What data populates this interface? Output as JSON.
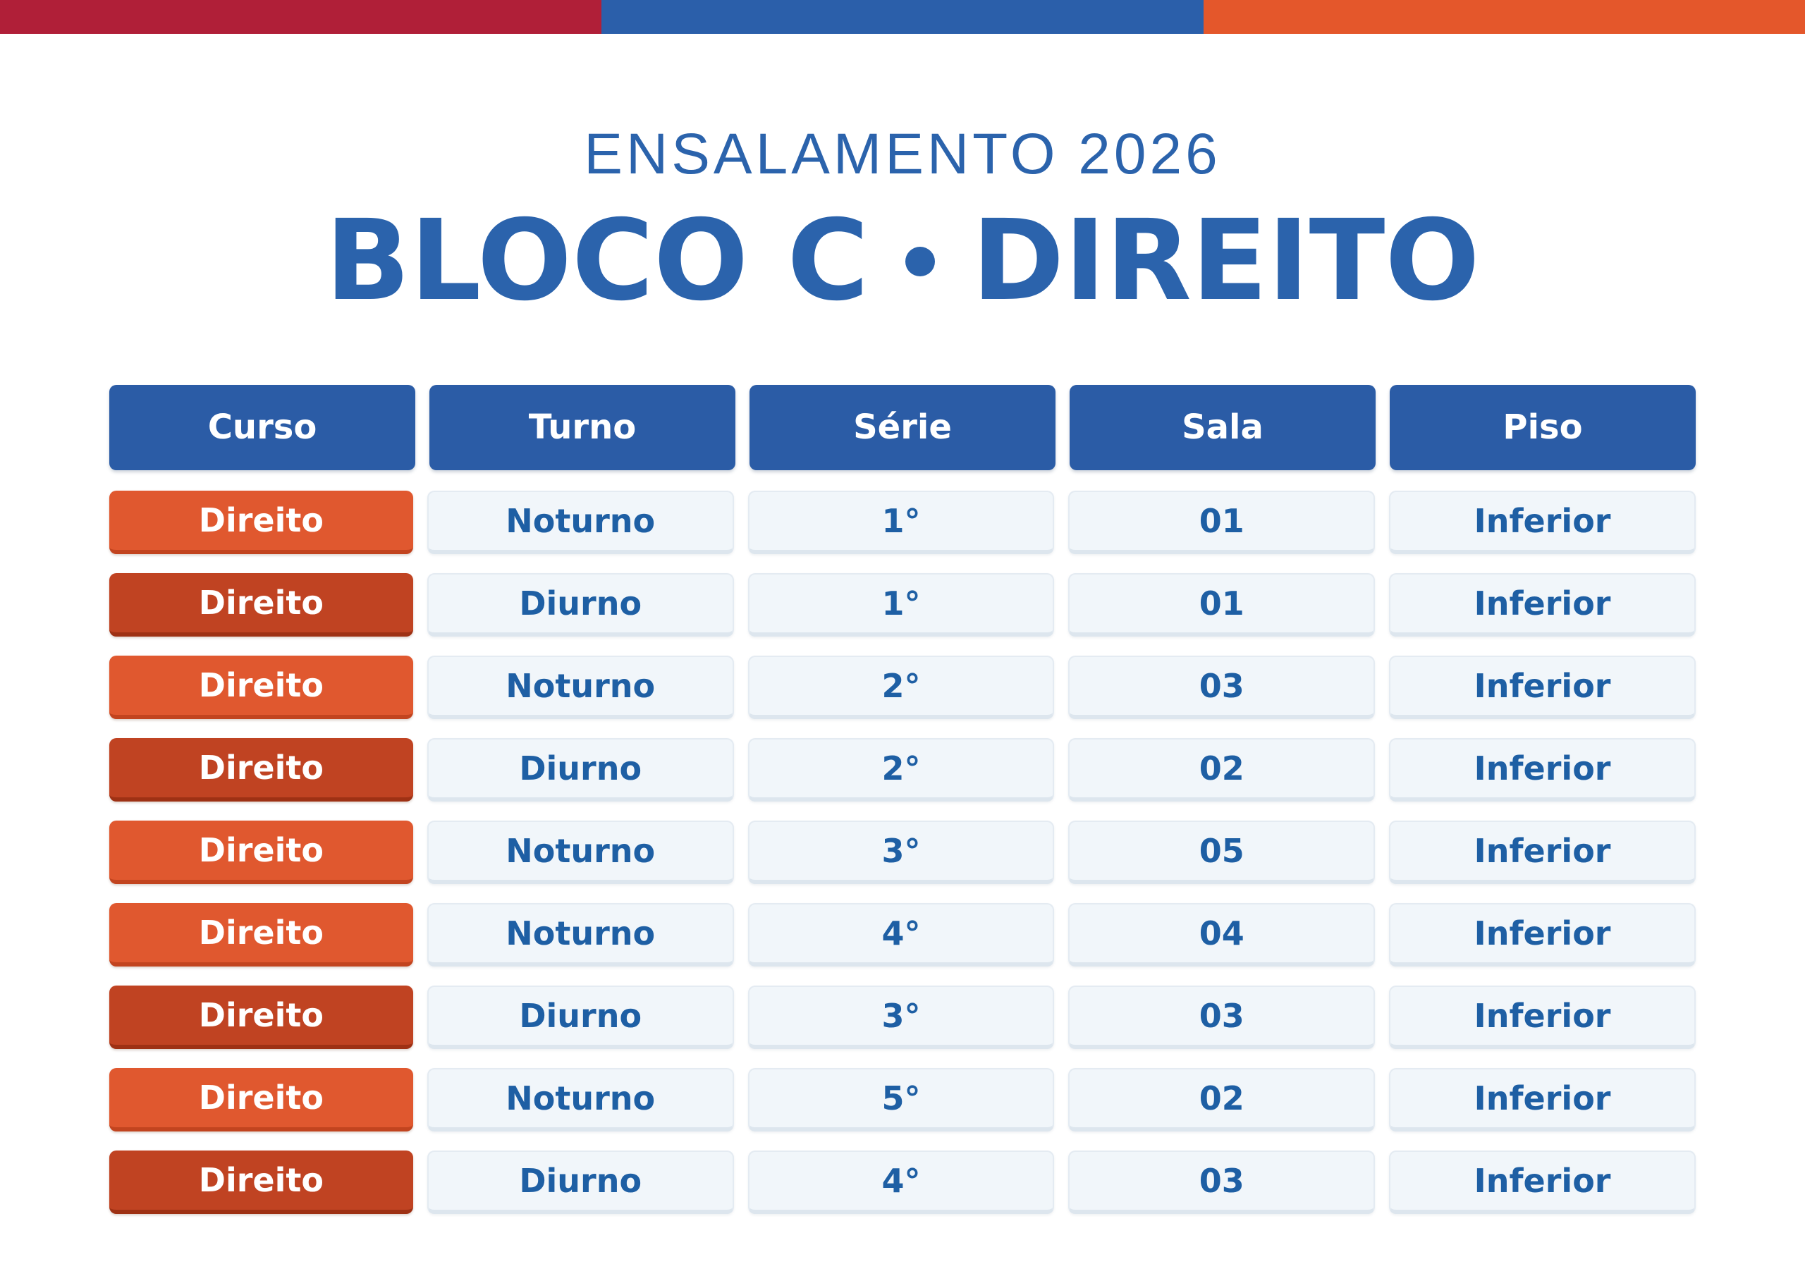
{
  "header": {
    "subtitle": "ENSALAMENTO 2026",
    "title_left": "BLOCO C",
    "title_right": "DIREITO"
  },
  "table": {
    "columns": [
      {
        "label": "Curso"
      },
      {
        "label": "Turno"
      },
      {
        "label": "Série"
      },
      {
        "label": "Sala"
      },
      {
        "label": "Piso"
      }
    ],
    "rows": [
      {
        "curso": "Direito",
        "turno": "Noturno",
        "serie": "1°",
        "sala": "01",
        "piso": "Inferior",
        "variant": "light"
      },
      {
        "curso": "Direito",
        "turno": "Diurno",
        "serie": "1°",
        "sala": "01",
        "piso": "Inferior",
        "variant": "dark"
      },
      {
        "curso": "Direito",
        "turno": "Noturno",
        "serie": "2°",
        "sala": "03",
        "piso": "Inferior",
        "variant": "light"
      },
      {
        "curso": "Direito",
        "turno": "Diurno",
        "serie": "2°",
        "sala": "02",
        "piso": "Inferior",
        "variant": "dark"
      },
      {
        "curso": "Direito",
        "turno": "Noturno",
        "serie": "3°",
        "sala": "05",
        "piso": "Inferior",
        "variant": "light"
      },
      {
        "curso": "Direito",
        "turno": "Noturno",
        "serie": "4°",
        "sala": "04",
        "piso": "Inferior",
        "variant": "light"
      },
      {
        "curso": "Direito",
        "turno": "Diurno",
        "serie": "3°",
        "sala": "03",
        "piso": "Inferior",
        "variant": "dark"
      },
      {
        "curso": "Direito",
        "turno": "Noturno",
        "serie": "5°",
        "sala": "02",
        "piso": "Inferior",
        "variant": "light"
      },
      {
        "curso": "Direito",
        "turno": "Diurno",
        "serie": "4°",
        "sala": "03",
        "piso": "Inferior",
        "variant": "dark"
      }
    ]
  },
  "colors": {
    "bar_red": "#B01F38",
    "bar_blue": "#2B5FAA",
    "bar_orange": "#E4572B",
    "header_blue": "#2B5CA6",
    "title_blue": "#2B63AC",
    "row_orange_light": "#E0582F",
    "row_orange_dark": "#C04322",
    "cell_background": "#F1F6FA",
    "cell_text_blue": "#1E5FA4"
  }
}
